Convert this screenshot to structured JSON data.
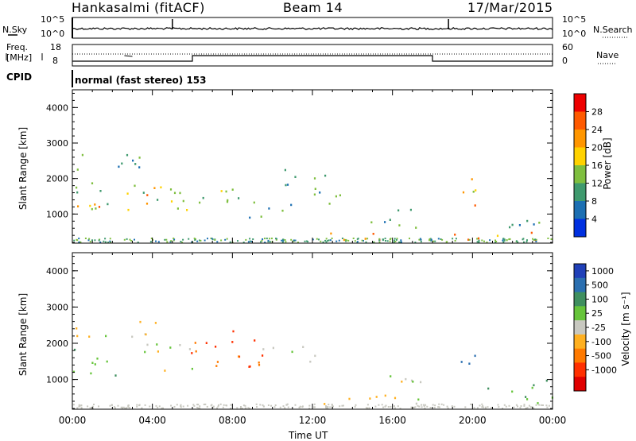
{
  "header": {
    "station": "Hankasalmi (fitACF)",
    "beam": "Beam 14",
    "date": "17/Mar/2015"
  },
  "noise_panel": {
    "left_label": "N.Sky",
    "right_label": "N.Search",
    "left_ticks": [
      "10^5",
      "10^0"
    ],
    "right_ticks": [
      "10^5",
      "10^0"
    ]
  },
  "freq_panel": {
    "left_label_1": "Freq.",
    "left_label_2": "[MHz]",
    "left_ticks": [
      "18",
      "8"
    ],
    "right_label": "Nave",
    "right_ticks": [
      "60",
      "0"
    ]
  },
  "cpid": {
    "label": "CPID",
    "value": "normal (fast stereo) 153"
  },
  "x_axis": {
    "label": "Time UT",
    "ticks": [
      "00:00",
      "04:00",
      "08:00",
      "12:00",
      "16:00",
      "20:00",
      "00:00"
    ]
  },
  "power_colorbar": {
    "label": "Power [dB]",
    "ticks": [
      "28",
      "24",
      "20",
      "16",
      "12",
      "8",
      "4"
    ],
    "colors": [
      "#ee0000",
      "#ff5a00",
      "#ff9600",
      "#ffd200",
      "#7fbf3f",
      "#3f9a6e",
      "#1c6fb2",
      "#0030e0"
    ]
  },
  "velocity_colorbar": {
    "label": "Velocity  [m s⁻¹]",
    "ticks": [
      "1000",
      "500",
      "100",
      "25",
      "-25",
      "-100",
      "-500",
      "-1000"
    ],
    "colors": [
      "#2040b8",
      "#2b6fb0",
      "#3f8f5f",
      "#66c43a",
      "#c8c8c0",
      "#ffb020",
      "#ff7a00",
      "#ff3000",
      "#e00000"
    ]
  },
  "chart_data": [
    {
      "type": "heatmap",
      "title": "Power",
      "xlabel": "Time UT",
      "ylabel": "Slant Range [km]",
      "xlim": [
        0,
        24
      ],
      "ylim": [
        180,
        4500
      ],
      "yticks": [
        1000,
        2000,
        3000,
        4000
      ],
      "colorbar_range_db": [
        0,
        32
      ],
      "grid": false,
      "regions": [
        {
          "t0": 0.0,
          "t1": 4.6,
          "r0": 2200,
          "r1": 2700,
          "level": 9
        },
        {
          "t0": 0.0,
          "t1": 6.2,
          "r0": 1100,
          "r1": 1900,
          "level": 15
        },
        {
          "t0": 0.2,
          "t1": 2.5,
          "r0": 1150,
          "r1": 1500,
          "level": 22
        },
        {
          "t0": 3.5,
          "t1": 6.0,
          "r0": 1300,
          "r1": 1800,
          "level": 20
        },
        {
          "t0": 6.0,
          "t1": 9.5,
          "r0": 1100,
          "r1": 1800,
          "level": 13
        },
        {
          "t0": 8.0,
          "t1": 11.0,
          "r0": 900,
          "r1": 1300,
          "level": 10
        },
        {
          "t0": 10.0,
          "t1": 12.8,
          "r0": 1500,
          "r1": 2300,
          "level": 12
        },
        {
          "t0": 12.0,
          "t1": 13.4,
          "r0": 1300,
          "r1": 1800,
          "level": 10
        },
        {
          "t0": 12.8,
          "t1": 17.5,
          "r0": 300,
          "r1": 600,
          "level": 25
        },
        {
          "t0": 14.5,
          "t1": 17.5,
          "r0": 600,
          "r1": 1200,
          "level": 11
        },
        {
          "t0": 18.5,
          "t1": 24.0,
          "r0": 250,
          "r1": 550,
          "level": 24
        },
        {
          "t0": 19.4,
          "t1": 20.2,
          "r0": 900,
          "r1": 2200,
          "level": 21
        },
        {
          "t0": 20.0,
          "t1": 20.5,
          "r0": 1300,
          "r1": 1700,
          "level": 9
        },
        {
          "t0": 21.5,
          "t1": 23.5,
          "r0": 500,
          "r1": 1300,
          "level": 10
        }
      ]
    },
    {
      "type": "heatmap",
      "title": "Velocity",
      "xlabel": "Time UT",
      "ylabel": "Slant Range [km]",
      "xlim": [
        0,
        24
      ],
      "ylim": [
        180,
        4500
      ],
      "yticks": [
        1000,
        2000,
        3000,
        4000
      ],
      "colorbar_range_ms": [
        -1000,
        1000
      ],
      "grid": false,
      "regions": [
        {
          "t0": 0.0,
          "t1": 4.6,
          "r0": 2200,
          "r1": 2700,
          "value": 0
        },
        {
          "t0": 0.0,
          "t1": 2.5,
          "r0": 1100,
          "r1": 1900,
          "value": 90
        },
        {
          "t0": 3.5,
          "t1": 6.0,
          "r0": 1100,
          "r1": 2000,
          "value": 0
        },
        {
          "t0": 5.5,
          "t1": 9.5,
          "r0": 1300,
          "r1": 2400,
          "value": -450
        },
        {
          "t0": 9.5,
          "t1": 12.5,
          "r0": 1500,
          "r1": 2000,
          "value": 0
        },
        {
          "t0": 12.5,
          "t1": 16.0,
          "r0": 300,
          "r1": 700,
          "value": -50
        },
        {
          "t0": 15.0,
          "t1": 17.5,
          "r0": 300,
          "r1": 1200,
          "value": 0
        },
        {
          "t0": 19.4,
          "t1": 20.3,
          "r0": 1200,
          "r1": 2200,
          "value": 900
        },
        {
          "t0": 20.5,
          "t1": 24.0,
          "r0": 300,
          "r1": 1000,
          "value": 90
        }
      ]
    }
  ]
}
